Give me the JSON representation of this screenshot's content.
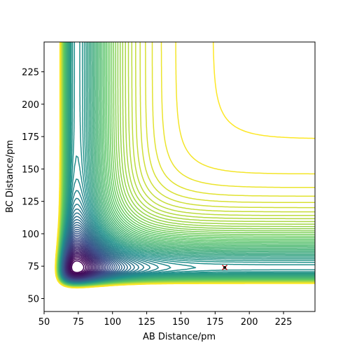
{
  "chart_data": {
    "type": "contour",
    "title": "",
    "xlabel": "AB Distance/pm",
    "ylabel": "BC Distance/pm",
    "xlim": [
      50,
      248
    ],
    "ylim": [
      40,
      248
    ],
    "xticks": [
      50,
      75,
      100,
      125,
      150,
      175,
      200,
      225
    ],
    "yticks": [
      50,
      75,
      100,
      125,
      150,
      175,
      200,
      225
    ],
    "grid": false,
    "colormap": "viridis",
    "colormap_stops": [
      "#440154",
      "#3b528b",
      "#21918c",
      "#5ec962",
      "#fde725"
    ],
    "surface": {
      "equilibrium_distance": 74,
      "well_width": 18,
      "repulsion_coefficient": 0.04,
      "cross_coupling": 0.21
    },
    "levels": {
      "start": -0.94,
      "step": 0.028,
      "count": 70
    },
    "markers": [
      {
        "x": 182,
        "y": 74,
        "symbol": "x",
        "color": "#d62728",
        "label": ""
      }
    ]
  }
}
